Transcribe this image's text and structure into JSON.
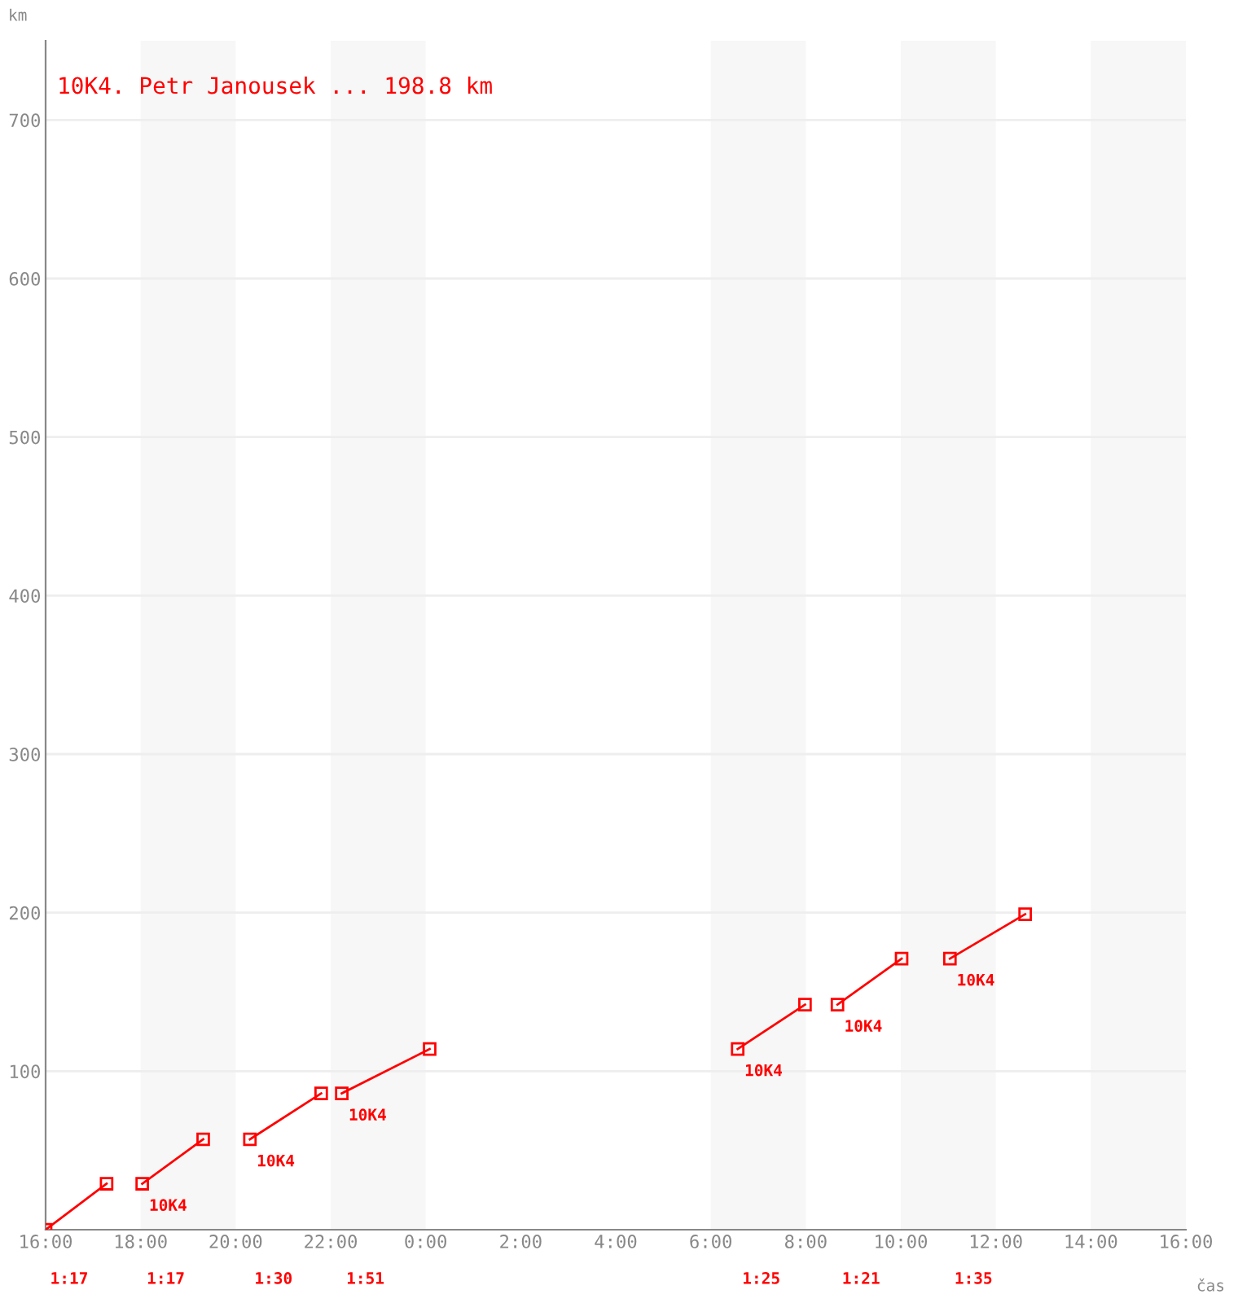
{
  "chart_data": {
    "type": "line",
    "title": "10K4. Petr Janousek ... 198.8 km",
    "ylabel": "km",
    "xlabel": "čas",
    "xlim": [
      "2000-01-01T16:00",
      "2000-01-02T16:00"
    ],
    "xticks": [
      {
        "value": "2000-01-01T16:00",
        "label": "16:00"
      },
      {
        "value": "2000-01-01T18:00",
        "label": "18:00"
      },
      {
        "value": "2000-01-01T20:00",
        "label": "20:00"
      },
      {
        "value": "2000-01-01T22:00",
        "label": "22:00"
      },
      {
        "value": "2000-01-02T00:00",
        "label": "0:00"
      },
      {
        "value": "2000-01-02T02:00",
        "label": "2:00"
      },
      {
        "value": "2000-01-02T04:00",
        "label": "4:00"
      },
      {
        "value": "2000-01-02T06:00",
        "label": "6:00"
      },
      {
        "value": "2000-01-02T08:00",
        "label": "8:00"
      },
      {
        "value": "2000-01-02T10:00",
        "label": "10:00"
      },
      {
        "value": "2000-01-02T12:00",
        "label": "12:00"
      },
      {
        "value": "2000-01-02T14:00",
        "label": "14:00"
      },
      {
        "value": "2000-01-02T16:00",
        "label": "16:00"
      }
    ],
    "ylim": [
      0,
      750
    ],
    "yticks": [
      100,
      200,
      300,
      400,
      500,
      600,
      700
    ],
    "grid": "y",
    "marker": "square",
    "line_style": "solid",
    "series": [
      {
        "color": "#ff0000",
        "x": [
          "2000-01-01T16:00",
          "2000-01-01T17:17"
        ],
        "values": [
          0,
          29
        ]
      },
      {
        "color": "#ff0000",
        "x": [
          "2000-01-01T18:02",
          "2000-01-01T19:19"
        ],
        "values": [
          29,
          57
        ]
      },
      {
        "color": "#ff0000",
        "x": [
          "2000-01-01T20:18",
          "2000-01-01T21:48"
        ],
        "values": [
          57,
          86
        ]
      },
      {
        "color": "#ff0000",
        "x": [
          "2000-01-01T22:14",
          "2000-01-02T00:05"
        ],
        "values": [
          86,
          114
        ]
      },
      {
        "color": "#ff0000",
        "x": [
          "2000-01-02T06:34",
          "2000-01-02T07:59"
        ],
        "values": [
          114,
          142
        ]
      },
      {
        "color": "#ff0000",
        "x": [
          "2000-01-02T08:40",
          "2000-01-02T10:01"
        ],
        "values": [
          142,
          171
        ]
      },
      {
        "color": "#ff0000",
        "x": [
          "2000-01-02T11:02",
          "2000-01-02T12:37"
        ],
        "values": [
          171,
          199
        ]
      }
    ],
    "bands": [
      {
        "axis": "x",
        "from": "2000-01-01T18:00",
        "to": "2000-01-01T20:00",
        "color": "#f7f7f7"
      },
      {
        "axis": "x",
        "from": "2000-01-01T22:00",
        "to": "2000-01-02T00:00",
        "color": "#f7f7f7"
      },
      {
        "axis": "x",
        "from": "2000-01-02T06:00",
        "to": "2000-01-02T08:00",
        "color": "#f7f7f7"
      },
      {
        "axis": "x",
        "from": "2000-01-02T10:00",
        "to": "2000-01-02T12:00",
        "color": "#f7f7f7"
      },
      {
        "axis": "x",
        "from": "2000-01-02T14:00",
        "to": "2000-01-02T16:00",
        "color": "#f7f7f7"
      }
    ],
    "annotations": [
      {
        "text": "10K4",
        "x": "2000-01-01T18:02",
        "y": 29
      },
      {
        "text": "10K4",
        "x": "2000-01-01T20:18",
        "y": 57
      },
      {
        "text": "10K4",
        "x": "2000-01-01T22:14",
        "y": 86
      },
      {
        "text": "10K4",
        "x": "2000-01-02T06:34",
        "y": 114
      },
      {
        "text": "10K4",
        "x": "2000-01-02T08:40",
        "y": 142
      },
      {
        "text": "10K4",
        "x": "2000-01-02T11:02",
        "y": 171
      },
      "1:17",
      "1:17",
      "1:30",
      "1:51",
      "1:25",
      "1:21",
      "1:35"
    ]
  }
}
